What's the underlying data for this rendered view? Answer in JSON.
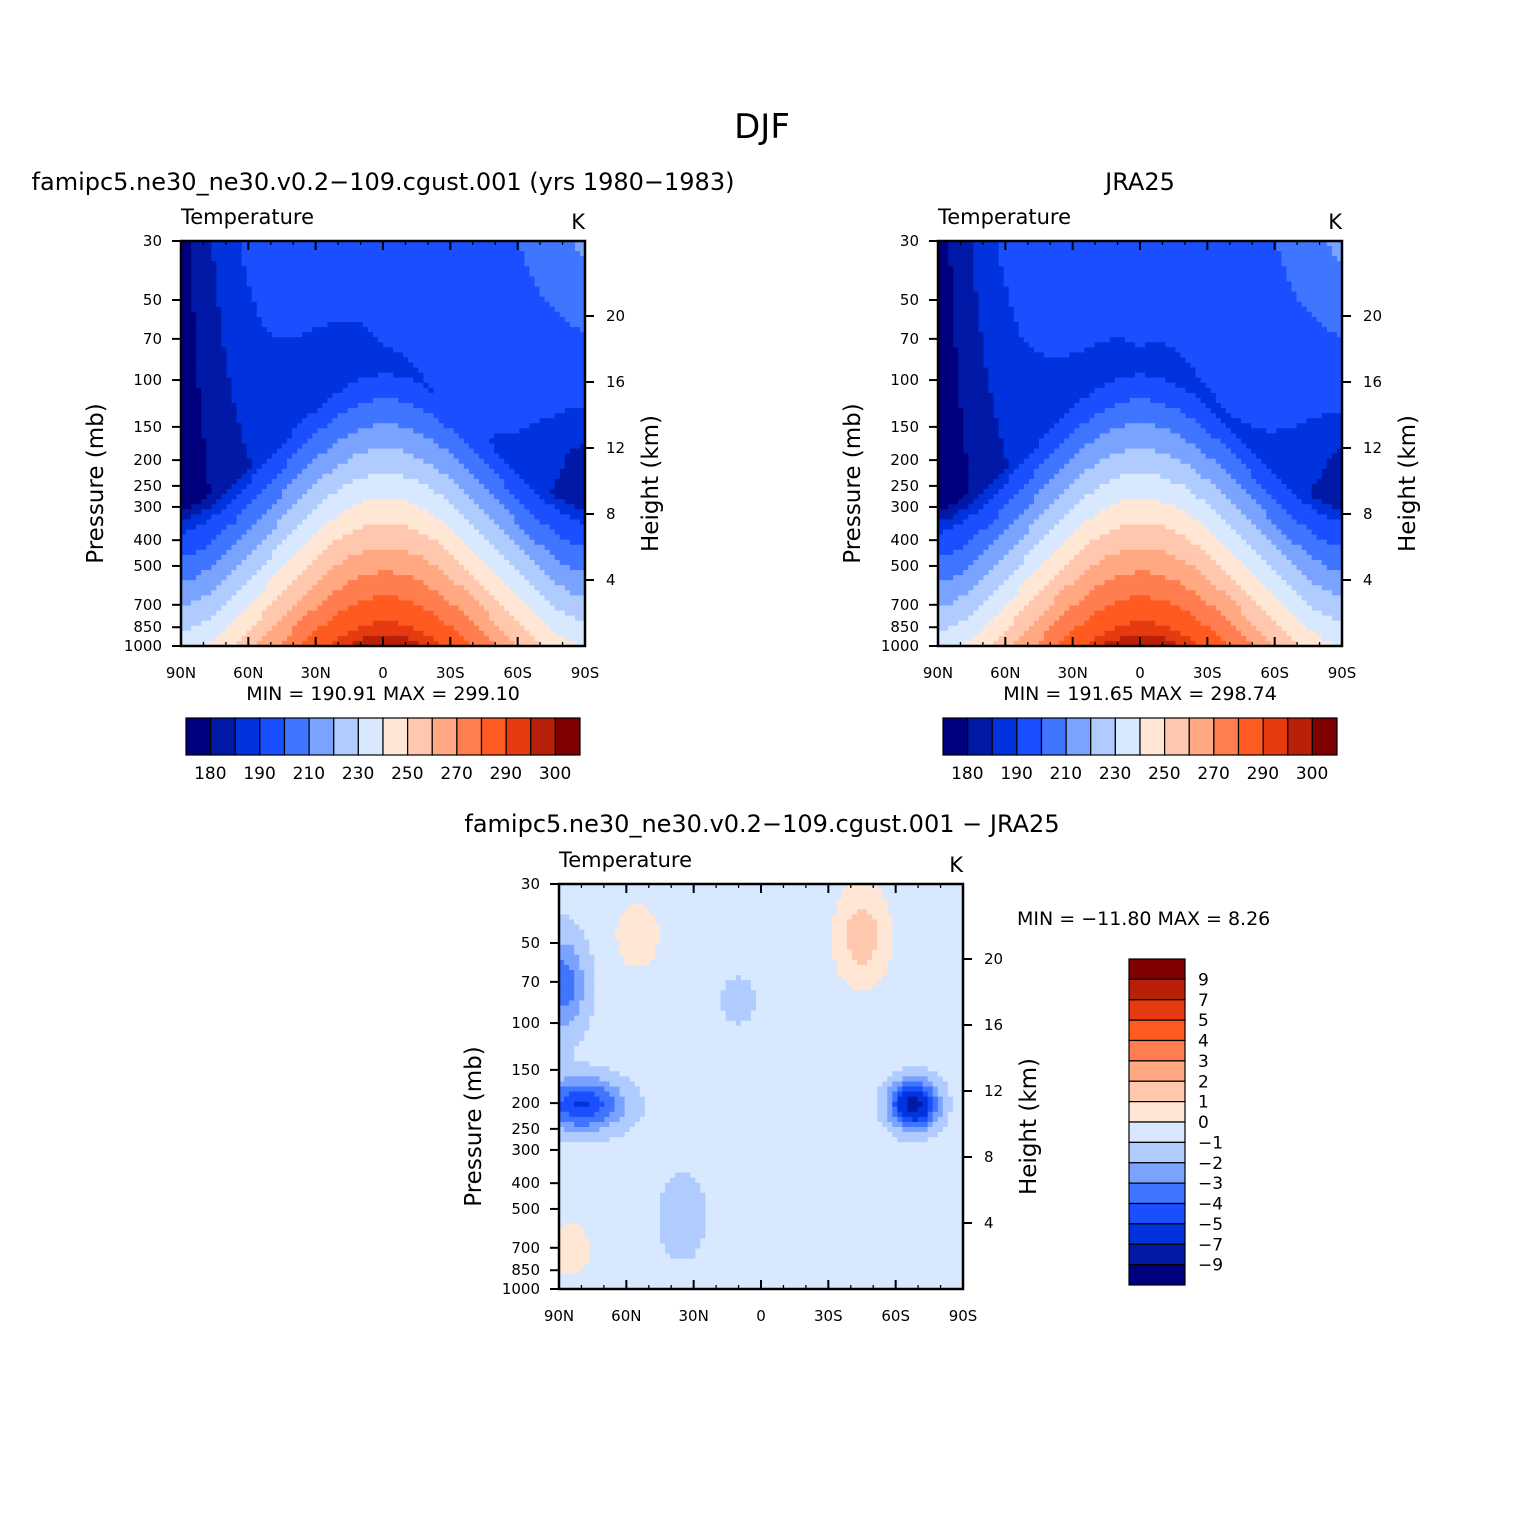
{
  "figure_title": "DJF",
  "colors": {
    "abs": [
      "#00007f",
      "#0019a6",
      "#0033dd",
      "#1a4fff",
      "#3f75ff",
      "#7aa3ff",
      "#b0ccff",
      "#d8e8ff",
      "#ffe6d5",
      "#ffc8ae",
      "#ffa882",
      "#ff7d4f",
      "#ff5a1f",
      "#e63a10",
      "#b82008",
      "#7f0000"
    ],
    "diff": [
      "#00007f",
      "#0019a6",
      "#0033dd",
      "#1a4fff",
      "#3f75ff",
      "#7aa3ff",
      "#b0ccff",
      "#d8e8ff",
      "#ffe6d5",
      "#ffc8ae",
      "#ffa882",
      "#ff7d4f",
      "#ff5a1f",
      "#e63a10",
      "#b82008",
      "#7f0000"
    ]
  },
  "chart_data": [
    {
      "type": "heatmap",
      "title": "famipc5.ne30_ne30.v0.2−109.cgust.001 (yrs 1980−1983)",
      "left_label": "Temperature",
      "units": "K",
      "ylabel": "Pressure (mb)",
      "y2label": "Height (km)",
      "x_ticks": [
        "90N",
        "60N",
        "30N",
        "0",
        "30S",
        "60S",
        "90S"
      ],
      "y_ticks": [
        "30",
        "50",
        "70",
        "100",
        "150",
        "200",
        "250",
        "300",
        "400",
        "500",
        "700",
        "850",
        "1000"
      ],
      "y2_ticks": [
        "20",
        "16",
        "12",
        "8",
        "4"
      ],
      "min_max": "MIN = 190.91   MAX = 299.10",
      "colorbar_labels": [
        "180",
        "190",
        "210",
        "230",
        "250",
        "270",
        "290",
        "300"
      ],
      "variant": "model"
    },
    {
      "type": "heatmap",
      "title": "JRA25",
      "left_label": "Temperature",
      "units": "K",
      "ylabel": "Pressure (mb)",
      "y2label": "Height (km)",
      "x_ticks": [
        "90N",
        "60N",
        "30N",
        "0",
        "30S",
        "60S",
        "90S"
      ],
      "y_ticks": [
        "30",
        "50",
        "70",
        "100",
        "150",
        "200",
        "250",
        "300",
        "400",
        "500",
        "700",
        "850",
        "1000"
      ],
      "y2_ticks": [
        "20",
        "16",
        "12",
        "8",
        "4"
      ],
      "min_max": "MIN = 191.65   MAX = 298.74",
      "colorbar_labels": [
        "180",
        "190",
        "210",
        "230",
        "250",
        "270",
        "290",
        "300"
      ],
      "variant": "obs"
    },
    {
      "type": "heatmap",
      "title": "famipc5.ne30_ne30.v0.2−109.cgust.001 − JRA25",
      "left_label": "Temperature",
      "units": "K",
      "ylabel": "Pressure (mb)",
      "y2label": "Height (km)",
      "x_ticks": [
        "90N",
        "60N",
        "30N",
        "0",
        "30S",
        "60S",
        "90S"
      ],
      "y_ticks": [
        "30",
        "50",
        "70",
        "100",
        "150",
        "200",
        "250",
        "300",
        "400",
        "500",
        "700",
        "850",
        "1000"
      ],
      "y2_ticks": [
        "20",
        "16",
        "12",
        "8",
        "4"
      ],
      "min_max": "MIN = −11.80   MAX =     8.26",
      "colorbar_labels": [
        "9",
        "7",
        "5",
        "4",
        "3",
        "2",
        "1",
        "0",
        "−1",
        "−2",
        "−3",
        "−4",
        "−5",
        "−7",
        "−9"
      ],
      "variant": "diff"
    }
  ]
}
